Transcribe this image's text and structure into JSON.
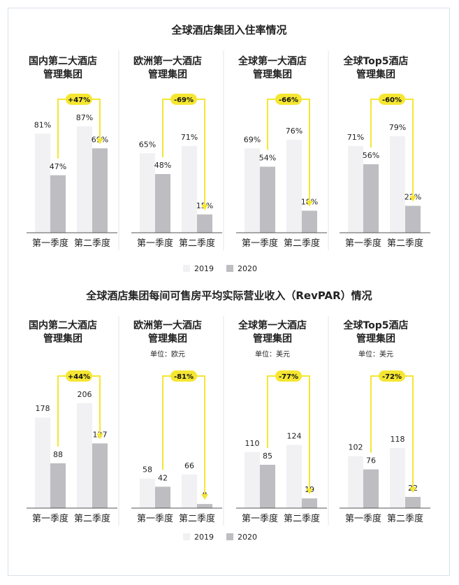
{
  "legend": {
    "y2019": "2019",
    "y2020": "2020"
  },
  "colors": {
    "bar2019": "#f1f1f4",
    "bar2020": "#bdbdc2",
    "accent": "#f5e632",
    "axis": "#555555",
    "text": "#222222"
  },
  "chart_data": [
    {
      "type": "bar",
      "title": "全球酒店集团入住率情况",
      "panels": [
        {
          "name": [
            "国内第二大酒店",
            "管理集团"
          ],
          "unit": "",
          "categories": [
            "第一季度",
            "第二季度"
          ],
          "series": [
            {
              "name": "2019",
              "values": [
                81,
                87
              ]
            },
            {
              "name": "2020",
              "values": [
                47,
                69
              ]
            }
          ],
          "labels": {
            "y2019": [
              "81%",
              "87%"
            ],
            "y2020": [
              "47%",
              "69%"
            ]
          },
          "change": "+47%"
        },
        {
          "name": [
            "欧洲第一大酒店",
            "管理集团"
          ],
          "unit": "",
          "categories": [
            "第一季度",
            "第二季度"
          ],
          "series": [
            {
              "name": "2019",
              "values": [
                65,
                71
              ]
            },
            {
              "name": "2020",
              "values": [
                48,
                15
              ]
            }
          ],
          "labels": {
            "y2019": [
              "65%",
              "71%"
            ],
            "y2020": [
              "48%",
              "15%"
            ]
          },
          "change": "-69%"
        },
        {
          "name": [
            "全球第一大酒店",
            "管理集团"
          ],
          "unit": "",
          "categories": [
            "第一季度",
            "第二季度"
          ],
          "series": [
            {
              "name": "2019",
              "values": [
                69,
                76
              ]
            },
            {
              "name": "2020",
              "values": [
                54,
                18
              ]
            }
          ],
          "labels": {
            "y2019": [
              "69%",
              "76%"
            ],
            "y2020": [
              "54%",
              "18%"
            ]
          },
          "change": "-66%"
        },
        {
          "name": [
            "全球Top5酒店",
            "管理集团"
          ],
          "unit": "",
          "categories": [
            "第一季度",
            "第二季度"
          ],
          "series": [
            {
              "name": "2019",
              "values": [
                71,
                79
              ]
            },
            {
              "name": "2020",
              "values": [
                56,
                22
              ]
            }
          ],
          "labels": {
            "y2019": [
              "71%",
              "79%"
            ],
            "y2020": [
              "56%",
              "22%"
            ]
          },
          "change": "-60%"
        }
      ]
    },
    {
      "type": "bar",
      "title": "全球酒店集团每间可售房平均实际营业收入（RevPAR）情况",
      "panels": [
        {
          "name": [
            "国内第二大酒店",
            "管理集团"
          ],
          "unit": "",
          "categories": [
            "第一季度",
            "第二季度"
          ],
          "series": [
            {
              "name": "2019",
              "values": [
                178,
                206
              ]
            },
            {
              "name": "2020",
              "values": [
                88,
                127
              ]
            }
          ],
          "labels": {
            "y2019": [
              "178",
              "206"
            ],
            "y2020": [
              "88",
              "127"
            ]
          },
          "change": "+44%"
        },
        {
          "name": [
            "欧洲第一大酒店",
            "管理集团"
          ],
          "unit": "单位：欧元",
          "categories": [
            "第一季度",
            "第二季度"
          ],
          "series": [
            {
              "name": "2019",
              "values": [
                58,
                66
              ]
            },
            {
              "name": "2020",
              "values": [
                42,
                8
              ]
            }
          ],
          "labels": {
            "y2019": [
              "58",
              "66"
            ],
            "y2020": [
              "42",
              "8"
            ]
          },
          "change": "-81%"
        },
        {
          "name": [
            "全球第一大酒店",
            "管理集团"
          ],
          "unit": "单位：美元",
          "categories": [
            "第一季度",
            "第二季度"
          ],
          "series": [
            {
              "name": "2019",
              "values": [
                110,
                124
              ]
            },
            {
              "name": "2020",
              "values": [
                85,
                19
              ]
            }
          ],
          "labels": {
            "y2019": [
              "110",
              "124"
            ],
            "y2020": [
              "85",
              "19"
            ]
          },
          "change": "-77%"
        },
        {
          "name": [
            "全球Top5酒店",
            "管理集团"
          ],
          "unit": "单位：美元",
          "categories": [
            "第一季度",
            "第二季度"
          ],
          "series": [
            {
              "name": "2019",
              "values": [
                102,
                118
              ]
            },
            {
              "name": "2020",
              "values": [
                76,
                22
              ]
            }
          ],
          "labels": {
            "y2019": [
              "102",
              "118"
            ],
            "y2020": [
              "76",
              "22"
            ]
          },
          "change": "-72%"
        }
      ]
    }
  ]
}
